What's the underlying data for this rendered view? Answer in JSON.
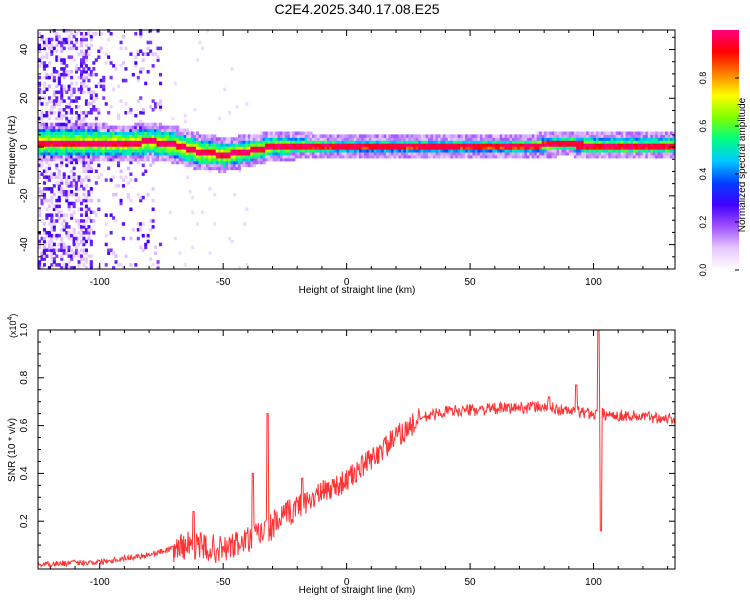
{
  "chart_data": [
    {
      "type": "heatmap",
      "title": "C2E4.2025.340.17.08.E25",
      "xlabel": "Height of straight line (km)",
      "ylabel": "Frequency (Hz)",
      "xlim": [
        -125,
        133
      ],
      "ylim": [
        -50,
        48
      ],
      "xticks": [
        -100,
        -50,
        0,
        50,
        100
      ],
      "yticks": [
        -40,
        -20,
        0,
        20,
        40
      ],
      "colorbar": {
        "label": "Normalized spectral amplitude",
        "range": [
          0.0,
          1.0
        ],
        "ticks": [
          "0.0",
          "0.2",
          "0.4",
          "0.6",
          "0.8"
        ],
        "colormap": [
          "#ffffff",
          "#e6c8ff",
          "#a050ff",
          "#4000ff",
          "#0040ff",
          "#00c8ff",
          "#00ff80",
          "#80ff00",
          "#ffff00",
          "#ff8000",
          "#ff0000",
          "#ff0080"
        ]
      },
      "band": {
        "center_hz": [
          [
            -103,
            1.5
          ],
          [
            -90,
            1.0
          ],
          [
            -80,
            2.0
          ],
          [
            -70,
            0.5
          ],
          [
            -60,
            -2.5
          ],
          [
            -50,
            -3.5
          ],
          [
            -40,
            -2.0
          ],
          [
            -30,
            0.0
          ],
          [
            -20,
            0.0
          ],
          [
            -10,
            0.0
          ],
          [
            0,
            0.0
          ],
          [
            20,
            0.0
          ],
          [
            40,
            0.0
          ],
          [
            60,
            0.0
          ],
          [
            70,
            0.0
          ],
          [
            80,
            0.5
          ],
          [
            90,
            1.0
          ],
          [
            100,
            0.0
          ],
          [
            133,
            0.0
          ]
        ],
        "halfwidth_hz": [
          [
            -103,
            5
          ],
          [
            -60,
            5
          ],
          [
            -40,
            4
          ],
          [
            -20,
            3
          ],
          [
            0,
            2
          ],
          [
            60,
            2
          ],
          [
            100,
            3
          ],
          [
            133,
            3
          ]
        ],
        "peak_segments_km": [
          [
            -22,
            -18
          ],
          [
            -5,
            5
          ],
          [
            10,
            22
          ],
          [
            30,
            45
          ],
          [
            85,
            95
          ]
        ]
      },
      "noise_region_km": [
        -125,
        -75
      ]
    },
    {
      "type": "line",
      "xlabel": "Height of straight line (km)",
      "ylabel": "SNR (10 * v/v)",
      "y_multiplier": "(x10",
      "y_multiplier_exp": "4",
      "y_multiplier_close": ")",
      "xlim": [
        -125,
        133
      ],
      "ylim": [
        0,
        1.0
      ],
      "xticks": [
        -100,
        -50,
        0,
        50,
        100
      ],
      "yticks": [
        0.2,
        0.4,
        0.6,
        0.8,
        1.0
      ],
      "series": [
        {
          "name": "SNR",
          "color": "#ff3333",
          "envelope": [
            [
              -125,
              0.02
            ],
            [
              -100,
              0.03
            ],
            [
              -80,
              0.06
            ],
            [
              -65,
              0.1
            ],
            [
              -50,
              0.08
            ],
            [
              -40,
              0.12
            ],
            [
              -30,
              0.18
            ],
            [
              -20,
              0.26
            ],
            [
              -10,
              0.32
            ],
            [
              0,
              0.37
            ],
            [
              10,
              0.46
            ],
            [
              20,
              0.55
            ],
            [
              30,
              0.63
            ],
            [
              40,
              0.66
            ],
            [
              60,
              0.67
            ],
            [
              80,
              0.68
            ],
            [
              90,
              0.66
            ],
            [
              100,
              0.65
            ],
            [
              133,
              0.63
            ]
          ],
          "spikes": [
            [
              -62,
              0.24
            ],
            [
              -32,
              0.65
            ],
            [
              -38,
              0.4
            ],
            [
              -18,
              0.38
            ],
            [
              93,
              0.77
            ],
            [
              102,
              1.0
            ],
            [
              103,
              0.16
            ],
            [
              82,
              0.72
            ]
          ]
        }
      ]
    }
  ]
}
